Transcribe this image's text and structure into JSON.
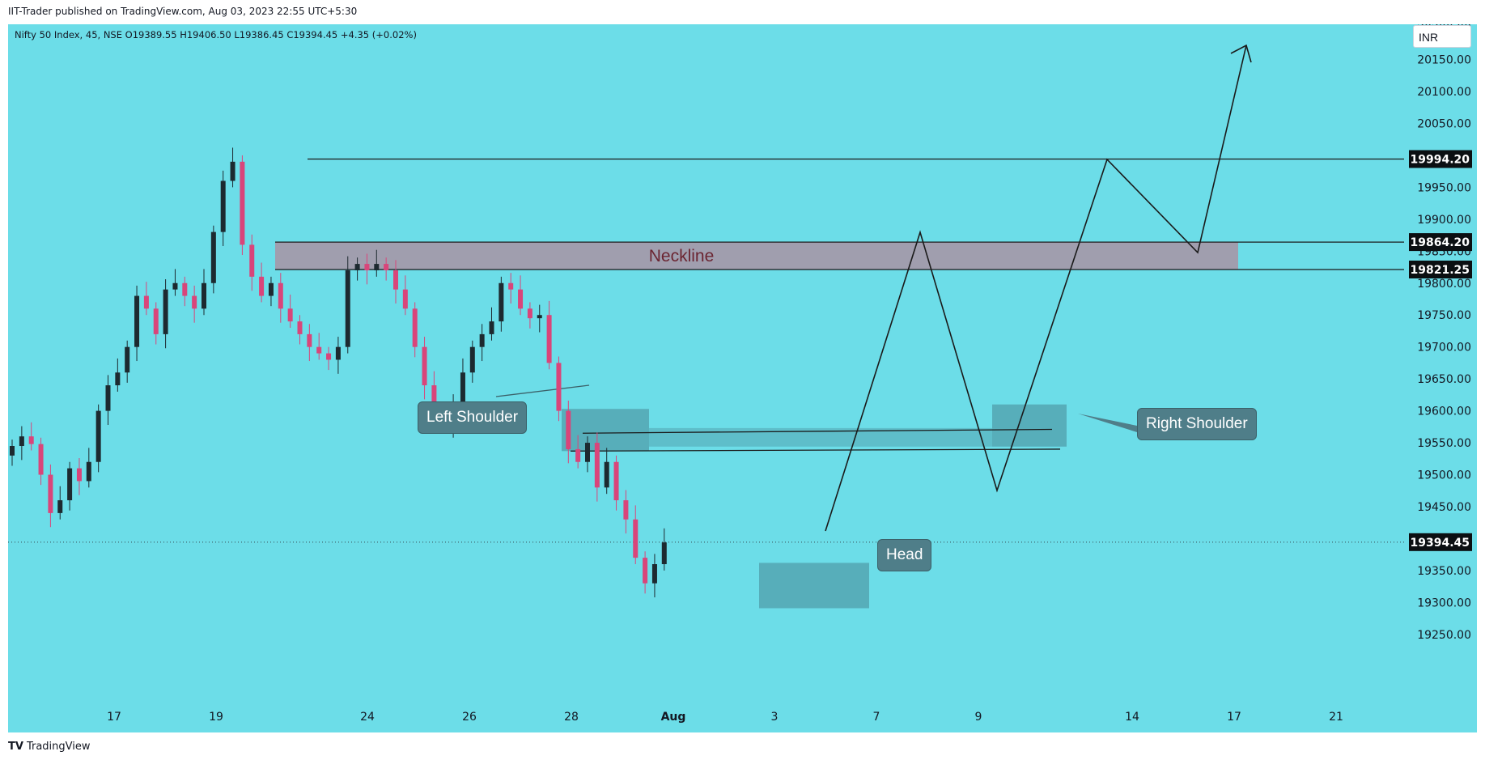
{
  "header": {
    "publisher_line": "IIT-Trader published on TradingView.com, Aug 03, 2023 22:55 UTC+5:30"
  },
  "toolbar": {
    "symbol_info": "Nifty 50 Index, 45, NSE  O19389.55  H19406.50  L19386.45  C19394.45  +4.35 (+0.02%)",
    "currency": "INR"
  },
  "footer": {
    "logo_mark": "TV",
    "logo_text": "TradingView"
  },
  "colors": {
    "background": "#6cdde8",
    "bull_candle": "#1d2a30",
    "bear_candle": "#d9457a",
    "neckline_fill": "#a39aab",
    "neckline_text": "#6b2532",
    "zone_fill": "#4e9aa6",
    "label_box": "#4f7e89"
  },
  "chart_data": {
    "type": "candlestick",
    "symbol": "Nifty 50 Index",
    "exchange": "NSE",
    "timeframe": "45",
    "ylim": [
      19200,
      20230
    ],
    "y_ticks": [
      19250,
      19300,
      19350,
      19400,
      19450,
      19500,
      19550,
      19600,
      19650,
      19700,
      19750,
      19800,
      19850,
      19900,
      19950,
      20000,
      20050,
      20100,
      20150,
      20200
    ],
    "x_tick_labels": [
      "17",
      "19",
      "24",
      "26",
      "28",
      "Aug",
      "3",
      "7",
      "9",
      "14",
      "17",
      "21"
    ],
    "price_labels": [
      {
        "value": 19994.2,
        "text": "19994.20"
      },
      {
        "value": 19864.2,
        "text": "19864.20"
      },
      {
        "value": 19821.25,
        "text": "19821.25"
      },
      {
        "value": 19394.45,
        "text": "19394.45"
      }
    ],
    "current_price": 19394.45,
    "neckline": {
      "label": "Neckline",
      "top": 19864.2,
      "bottom": 19821.25
    },
    "resistance": 19994.2,
    "annotations": [
      "Left Shoulder",
      "Head",
      "Right Shoulder"
    ],
    "closes": [
      19545,
      19560,
      19548,
      19500,
      19440,
      19460,
      19510,
      19490,
      19520,
      19600,
      19640,
      19660,
      19700,
      19780,
      19760,
      19720,
      19790,
      19800,
      19780,
      19760,
      19800,
      19880,
      19960,
      19990,
      19860,
      19810,
      19780,
      19800,
      19760,
      19740,
      19720,
      19700,
      19690,
      19680,
      19700,
      19820,
      19830,
      19820,
      19830,
      19820,
      19790,
      19760,
      19700,
      19640,
      19600,
      19580,
      19610,
      19660,
      19700,
      19720,
      19740,
      19800,
      19790,
      19760,
      19745,
      19750,
      19675,
      19600,
      19540,
      19520,
      19550,
      19480,
      19520,
      19460,
      19430,
      19370,
      19330,
      19360,
      19394
    ]
  }
}
